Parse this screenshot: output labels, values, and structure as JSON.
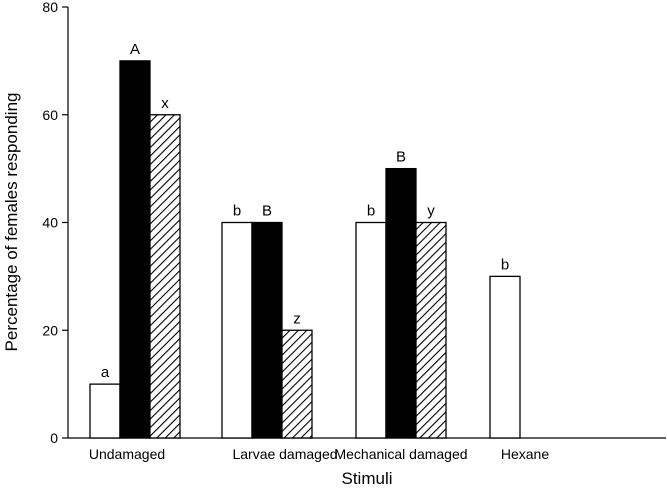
{
  "chart_data": {
    "type": "bar",
    "xlabel": "Stimuli",
    "ylabel": "Percentage of females responding",
    "ylim": [
      0,
      80
    ],
    "yticks": [
      0,
      20,
      40,
      60,
      80
    ],
    "categories": [
      "Undamaged",
      "Larvae damaged",
      "Mechanical damaged",
      "Hexane"
    ],
    "series": [
      {
        "fill": "white",
        "values": [
          10,
          40,
          40,
          30
        ],
        "labels": [
          "a",
          "b",
          "b",
          "b"
        ]
      },
      {
        "fill": "black",
        "values": [
          70,
          40,
          50,
          null
        ],
        "labels": [
          "A",
          "B",
          "B",
          ""
        ]
      },
      {
        "fill": "hatched",
        "values": [
          60,
          20,
          40,
          null
        ],
        "labels": [
          "x",
          "z",
          "y",
          ""
        ]
      }
    ],
    "grid": false,
    "legend": "none"
  }
}
